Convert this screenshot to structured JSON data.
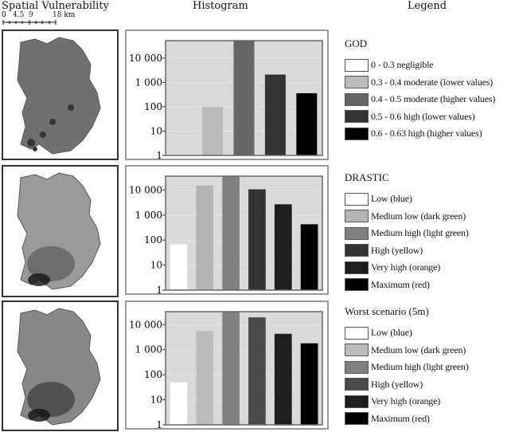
{
  "headers": {
    "maps": "Spatial Vulnerability",
    "histogram": "Histogram",
    "legend": "Legend"
  },
  "scale_bar": {
    "labels": [
      "0",
      "4.5",
      "9",
      "18 km"
    ]
  },
  "chart_data": [
    {
      "type": "bar",
      "title": "",
      "yscale": "log",
      "ylim": [
        1,
        52000
      ],
      "yticks": [
        "1",
        "10",
        "100",
        "1 000",
        "10 000"
      ],
      "grid": true,
      "categories": [
        "0 - 0.3 negligible",
        "0.3 - 0.4 moderate (lower values)",
        "0.4 - 0.5 moderate (higher values)",
        "0.5 - 0.6 high (lower values)",
        "0.6 - 0.63 high (higher values)"
      ],
      "values": [
        0,
        100,
        52000,
        2100,
        360
      ],
      "colors": [
        "#ffffff",
        "#bcbcbc",
        "#666666",
        "#333333",
        "#000000"
      ]
    },
    {
      "type": "bar",
      "title": "",
      "yscale": "log",
      "ylim": [
        1,
        36000
      ],
      "yticks": [
        "1",
        "10",
        "100",
        "1 000",
        "10 000"
      ],
      "grid": true,
      "categories": [
        "Low (blue)",
        "Medium low (dark green)",
        "Medium high (light green)",
        "High (yellow)",
        "Very high (orange)",
        "Maximum (red)"
      ],
      "values": [
        67,
        15000,
        36000,
        10700,
        2700,
        430
      ],
      "colors": [
        "#ffffff",
        "#b5b5b5",
        "#808080",
        "#333333",
        "#1e1e1e",
        "#000000"
      ]
    },
    {
      "type": "bar",
      "title": "",
      "yscale": "log",
      "ylim": [
        1,
        33000
      ],
      "yticks": [
        "1",
        "10",
        "100",
        "1 000",
        "10 000"
      ],
      "grid": true,
      "categories": [
        "Low (blue)",
        "Medium low (dark green)",
        "Medium high (light green)",
        "High (yellow)",
        "Very high (orange)",
        "Maximum (red)"
      ],
      "values": [
        50,
        5700,
        33000,
        19500,
        4300,
        1800
      ],
      "colors": [
        "#ffffff",
        "#bcbcbc",
        "#808080",
        "#4a4a4a",
        "#1e1e1e",
        "#000000"
      ]
    }
  ],
  "legends": [
    {
      "title": "GOD"
    },
    {
      "title": "DRASTIC"
    },
    {
      "title": "Worst scenario (5m)"
    }
  ]
}
